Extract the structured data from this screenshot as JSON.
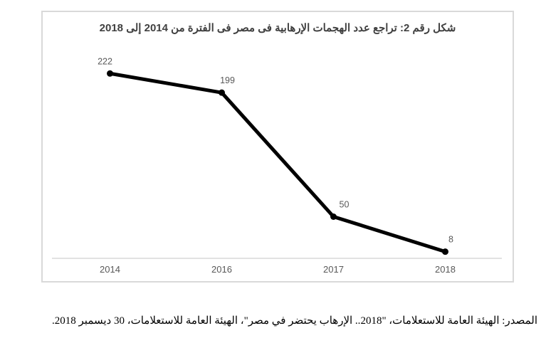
{
  "figure": {
    "source": "المصدر: الهيئة العامة للاستعلامات، \"2018.. الإرهاب يحتضر في مصر\"، الهيئة العامة للاستعلامات، 30 ديسمبر 2018."
  },
  "chart_data": {
    "type": "line",
    "title": "شكل رقم 2: تراجع عدد الهجمات الإرهابية فى مصر فى الفترة من 2014 إلى 2018",
    "categories": [
      "2014",
      "2016",
      "2017",
      "2018"
    ],
    "values": [
      222,
      199,
      50,
      8
    ],
    "data_labels": [
      "222",
      "199",
      "50",
      "8"
    ],
    "xlabel": "",
    "ylabel": "",
    "ylim": [
      0,
      295
    ],
    "grid": false,
    "legend": "none",
    "y_axis_shown": false,
    "colors": {
      "line": "#000000",
      "marker": "#000000",
      "data_label": "#595959",
      "axis_label": "#595959",
      "axis_line": "#d9d9d9",
      "chart_border": "#d9d9d9",
      "title": "#404040"
    }
  }
}
